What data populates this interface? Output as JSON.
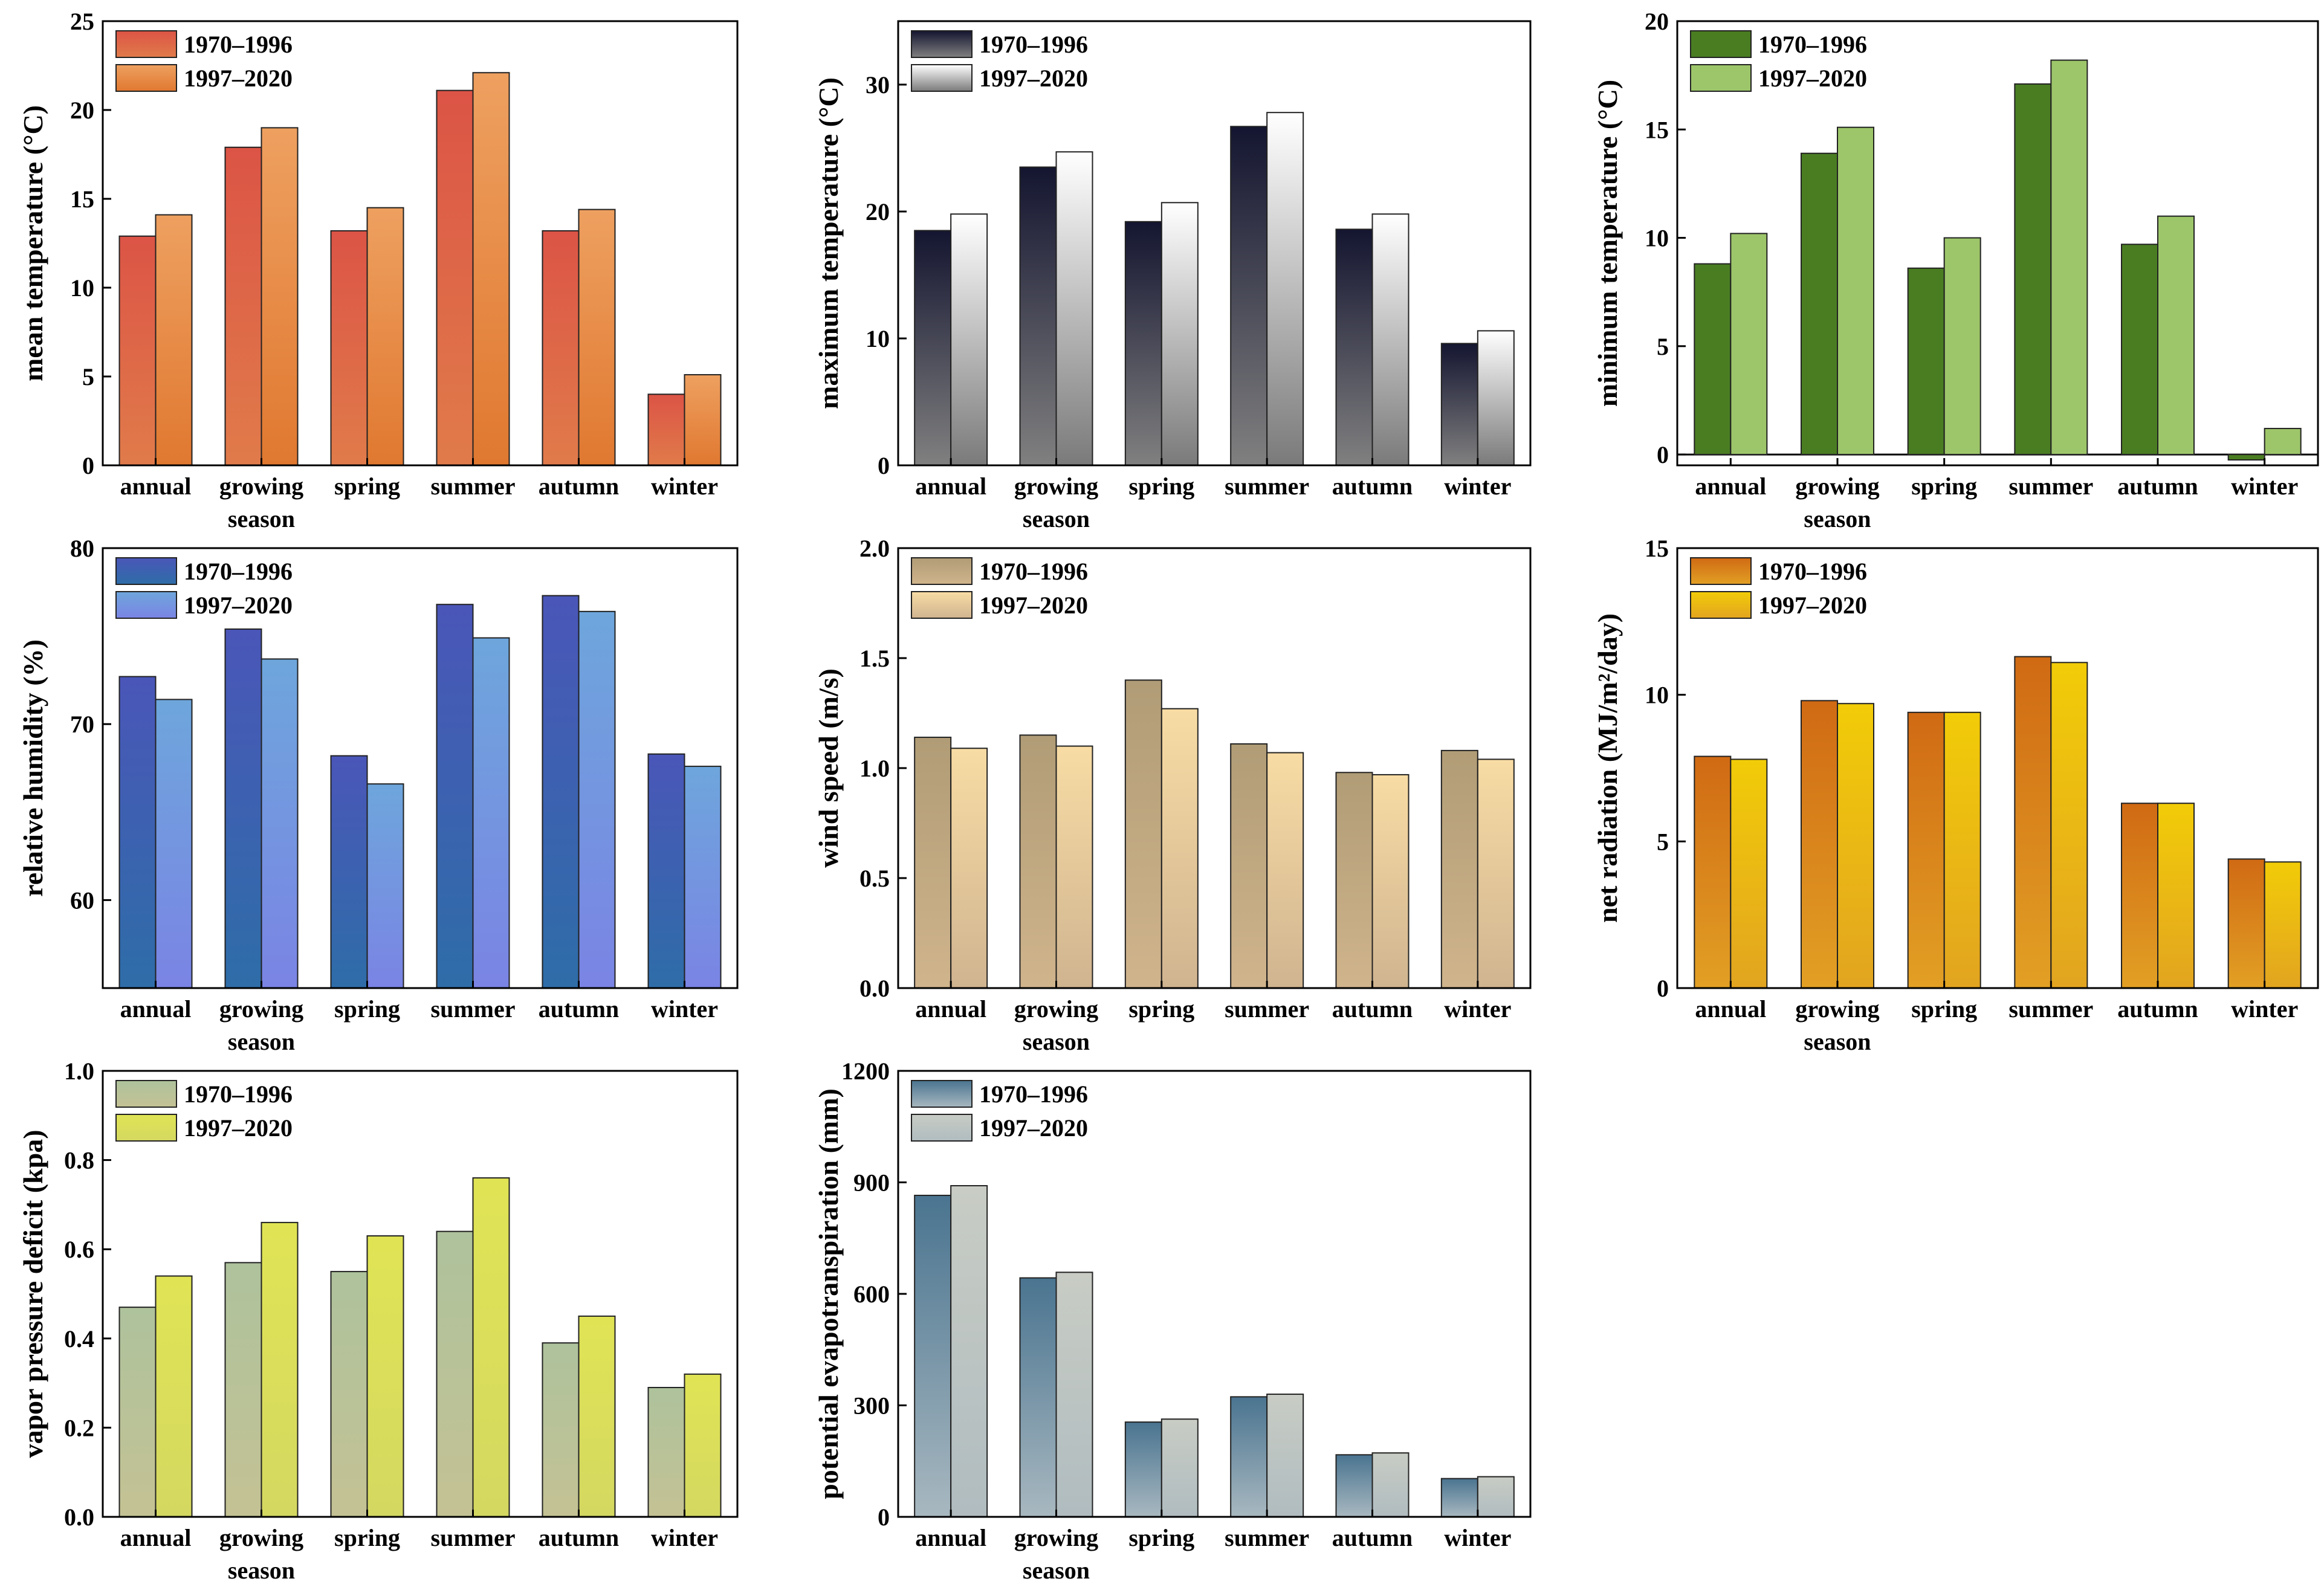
{
  "chart_data": [
    {
      "type": "bar",
      "id": "mean",
      "ylabel": "mean temperature (°C)",
      "categories": [
        "annual",
        "growing season",
        "spring",
        "summer",
        "autumn",
        "winter"
      ],
      "category_labels": [
        [
          "annual"
        ],
        [
          "growing",
          "season"
        ],
        [
          "spring"
        ],
        [
          "summer"
        ],
        [
          "autumn"
        ],
        [
          "winter"
        ]
      ],
      "ylim": [
        0,
        25
      ],
      "yticks": [
        0,
        5,
        10,
        15,
        20,
        25
      ],
      "legend_position": "top-left",
      "grid": false,
      "series": [
        {
          "name": "1970–1996",
          "values": [
            12.9,
            17.9,
            13.2,
            21.1,
            13.2,
            4.0
          ],
          "color_top": "#dc5446",
          "color_bottom": "#e07b4a"
        },
        {
          "name": "1997–2020",
          "values": [
            14.1,
            19.0,
            14.5,
            22.1,
            14.4,
            5.1
          ],
          "color_top": "#eea060",
          "color_bottom": "#e07830"
        }
      ]
    },
    {
      "type": "bar",
      "id": "max",
      "ylabel": "maximum temperature (°C)",
      "categories": [
        "annual",
        "growing season",
        "spring",
        "summer",
        "autumn",
        "winter"
      ],
      "category_labels": [
        [
          "annual"
        ],
        [
          "growing",
          "season"
        ],
        [
          "spring"
        ],
        [
          "summer"
        ],
        [
          "autumn"
        ],
        [
          "winter"
        ]
      ],
      "ylim": [
        0,
        35
      ],
      "yticks": [
        0,
        10,
        20,
        30
      ],
      "legend_position": "top-left",
      "grid": false,
      "series": [
        {
          "name": "1970–1996",
          "values": [
            18.5,
            23.5,
            19.2,
            26.7,
            18.6,
            9.6
          ],
          "color_top": "#141530",
          "color_bottom": "#808080"
        },
        {
          "name": "1997–2020",
          "values": [
            19.8,
            24.7,
            20.7,
            27.8,
            19.8,
            10.6
          ],
          "color_top": "#ffffff",
          "color_bottom": "#7a7a7a"
        }
      ]
    },
    {
      "type": "bar",
      "id": "min",
      "ylabel": "minimum temperature (°C)",
      "categories": [
        "annual",
        "growing season",
        "spring",
        "summer",
        "autumn",
        "winter"
      ],
      "category_labels": [
        [
          "annual"
        ],
        [
          "growing",
          "season"
        ],
        [
          "spring"
        ],
        [
          "summer"
        ],
        [
          "autumn"
        ],
        [
          "winter"
        ]
      ],
      "ylim": [
        -0.5,
        20
      ],
      "yticks": [
        0,
        5,
        10,
        15,
        20
      ],
      "zero_line": true,
      "legend_position": "top-left",
      "grid": false,
      "series": [
        {
          "name": "1970–1996",
          "values": [
            8.8,
            13.9,
            8.6,
            17.1,
            9.7,
            -0.25
          ],
          "color_top": "#4a7d22",
          "color_bottom": "#4a7d22"
        },
        {
          "name": "1997–2020",
          "values": [
            10.2,
            15.1,
            10.0,
            18.2,
            11.0,
            1.2
          ],
          "color_top": "#9dc66a",
          "color_bottom": "#9dc66a"
        }
      ]
    },
    {
      "type": "bar",
      "id": "rh",
      "ylabel": "relative humidity (%)",
      "categories": [
        "annual",
        "growing season",
        "spring",
        "summer",
        "autumn",
        "winter"
      ],
      "category_labels": [
        [
          "annual"
        ],
        [
          "growing",
          "season"
        ],
        [
          "spring"
        ],
        [
          "summer"
        ],
        [
          "autumn"
        ],
        [
          "winter"
        ]
      ],
      "ylim": [
        55,
        80
      ],
      "yticks": [
        60,
        70,
        80
      ],
      "legend_position": "top-left",
      "grid": false,
      "series": [
        {
          "name": "1970–1996",
          "values": [
            72.7,
            75.4,
            68.2,
            76.8,
            77.3,
            68.3
          ],
          "color_top": "#4a56b8",
          "color_bottom": "#2e6da8"
        },
        {
          "name": "1997–2020",
          "values": [
            71.4,
            73.7,
            66.6,
            74.9,
            76.4,
            67.6
          ],
          "color_top": "#6ea6dc",
          "color_bottom": "#7a84e4"
        }
      ]
    },
    {
      "type": "bar",
      "id": "ws",
      "ylabel": "wind speed (m/s)",
      "categories": [
        "annual",
        "growing season",
        "spring",
        "summer",
        "autumn",
        "winter"
      ],
      "category_labels": [
        [
          "annual"
        ],
        [
          "growing",
          "season"
        ],
        [
          "spring"
        ],
        [
          "summer"
        ],
        [
          "autumn"
        ],
        [
          "winter"
        ]
      ],
      "ylim": [
        0,
        2.0
      ],
      "yticks": [
        0.0,
        0.5,
        1.0,
        1.5,
        2.0
      ],
      "decimals": 1,
      "legend_position": "top-left",
      "grid": false,
      "series": [
        {
          "name": "1970–1996",
          "values": [
            1.14,
            1.15,
            1.4,
            1.11,
            0.98,
            1.08
          ],
          "color_top": "#b09c76",
          "color_bottom": "#d0b48c"
        },
        {
          "name": "1997–2020",
          "values": [
            1.09,
            1.1,
            1.27,
            1.07,
            0.97,
            1.04
          ],
          "color_top": "#f8dca4",
          "color_bottom": "#d0b490"
        }
      ]
    },
    {
      "type": "bar",
      "id": "rn",
      "ylabel": "net radiation (MJ/m²/day)",
      "categories": [
        "annual",
        "growing season",
        "spring",
        "summer",
        "autumn",
        "winter"
      ],
      "category_labels": [
        [
          "annual"
        ],
        [
          "growing",
          "season"
        ],
        [
          "spring"
        ],
        [
          "summer"
        ],
        [
          "autumn"
        ],
        [
          "winter"
        ]
      ],
      "ylim": [
        0,
        15
      ],
      "yticks": [
        0,
        5,
        10,
        15
      ],
      "legend_position": "top-left",
      "grid": false,
      "series": [
        {
          "name": "1970–1996",
          "values": [
            7.9,
            9.8,
            9.4,
            11.3,
            6.3,
            4.4
          ],
          "color_top": "#d06a14",
          "color_bottom": "#e2a024"
        },
        {
          "name": "1997–2020",
          "values": [
            7.8,
            9.7,
            9.4,
            11.1,
            6.3,
            4.3
          ],
          "color_top": "#f2cc08",
          "color_bottom": "#e2a420"
        }
      ]
    },
    {
      "type": "bar",
      "id": "vpd",
      "ylabel": "vapor pressure deficit (kpa)",
      "categories": [
        "annual",
        "growing season",
        "spring",
        "summer",
        "autumn",
        "winter"
      ],
      "category_labels": [
        [
          "annual"
        ],
        [
          "growing",
          "season"
        ],
        [
          "spring"
        ],
        [
          "summer"
        ],
        [
          "autumn"
        ],
        [
          "winter"
        ]
      ],
      "ylim": [
        0,
        1.0
      ],
      "yticks": [
        0.0,
        0.2,
        0.4,
        0.6,
        0.8,
        1.0
      ],
      "decimals": 1,
      "legend_position": "top-left",
      "grid": false,
      "series": [
        {
          "name": "1970–1996",
          "values": [
            0.47,
            0.57,
            0.55,
            0.64,
            0.39,
            0.29
          ],
          "color_top": "#aec29c",
          "color_bottom": "#c4c294"
        },
        {
          "name": "1997–2020",
          "values": [
            0.54,
            0.66,
            0.63,
            0.76,
            0.45,
            0.32
          ],
          "color_top": "#e0e454",
          "color_bottom": "#d4d860"
        }
      ]
    },
    {
      "type": "bar",
      "id": "pet",
      "ylabel": "potential evapotranspiration (mm)",
      "categories": [
        "annual",
        "growing season",
        "spring",
        "summer",
        "autumn",
        "winter"
      ],
      "category_labels": [
        [
          "annual"
        ],
        [
          "growing",
          "season"
        ],
        [
          "spring"
        ],
        [
          "summer"
        ],
        [
          "autumn"
        ],
        [
          "winter"
        ]
      ],
      "ylim": [
        0,
        1200
      ],
      "yticks": [
        0,
        300,
        600,
        900,
        1200
      ],
      "legend_position": "top-left",
      "grid": false,
      "series": [
        {
          "name": "1970–1996",
          "values": [
            865,
            643,
            255,
            323,
            167,
            103
          ],
          "color_top": "#4a7490",
          "color_bottom": "#a8b8c0"
        },
        {
          "name": "1997–2020",
          "values": [
            891,
            658,
            263,
            330,
            172,
            108
          ],
          "color_top": "#c8ccc4",
          "color_bottom": "#b0bcc0"
        }
      ]
    }
  ]
}
